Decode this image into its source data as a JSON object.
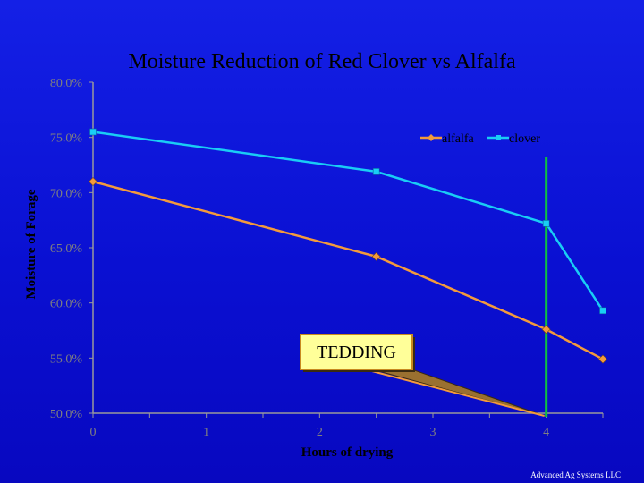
{
  "chart_data": {
    "type": "line",
    "title": "Moisture Reduction of  Red Clover vs  Alfalfa",
    "xlabel": "Hours of drying",
    "ylabel": "Moisture of Forage",
    "xlim": [
      0,
      4.5
    ],
    "ylim": [
      50,
      80
    ],
    "x_ticks": [
      0,
      1,
      2,
      3,
      4
    ],
    "x_tick_labels": [
      "0",
      "1",
      "2",
      "3",
      "4"
    ],
    "y_ticks": [
      50,
      55,
      60,
      65,
      70,
      75,
      80
    ],
    "y_tick_labels": [
      "50.0%",
      "55.0%",
      "60.0%",
      "65.0%",
      "70.0%",
      "75.0%",
      "80.0%"
    ],
    "grid": false,
    "legend_position": "top-right",
    "series": [
      {
        "name": "alfalfa",
        "color": "#f39a3c",
        "marker": "diamond",
        "x": [
          0,
          2.5,
          4,
          4.5
        ],
        "y": [
          71.0,
          64.2,
          57.6,
          54.9
        ]
      },
      {
        "name": "clover",
        "color": "#19cdf5",
        "marker": "square",
        "x": [
          0,
          2.5,
          4,
          4.5
        ],
        "y": [
          75.5,
          71.9,
          67.2,
          59.3
        ]
      }
    ],
    "annotations": [
      {
        "text": "TEDDING",
        "type": "callout",
        "points_to_x": 4,
        "color": "#f39a3c"
      },
      {
        "type": "vertical-line",
        "x": 4,
        "color": "#10c040"
      }
    ]
  },
  "footer": {
    "text": "Advanced Ag Systems LLC"
  }
}
